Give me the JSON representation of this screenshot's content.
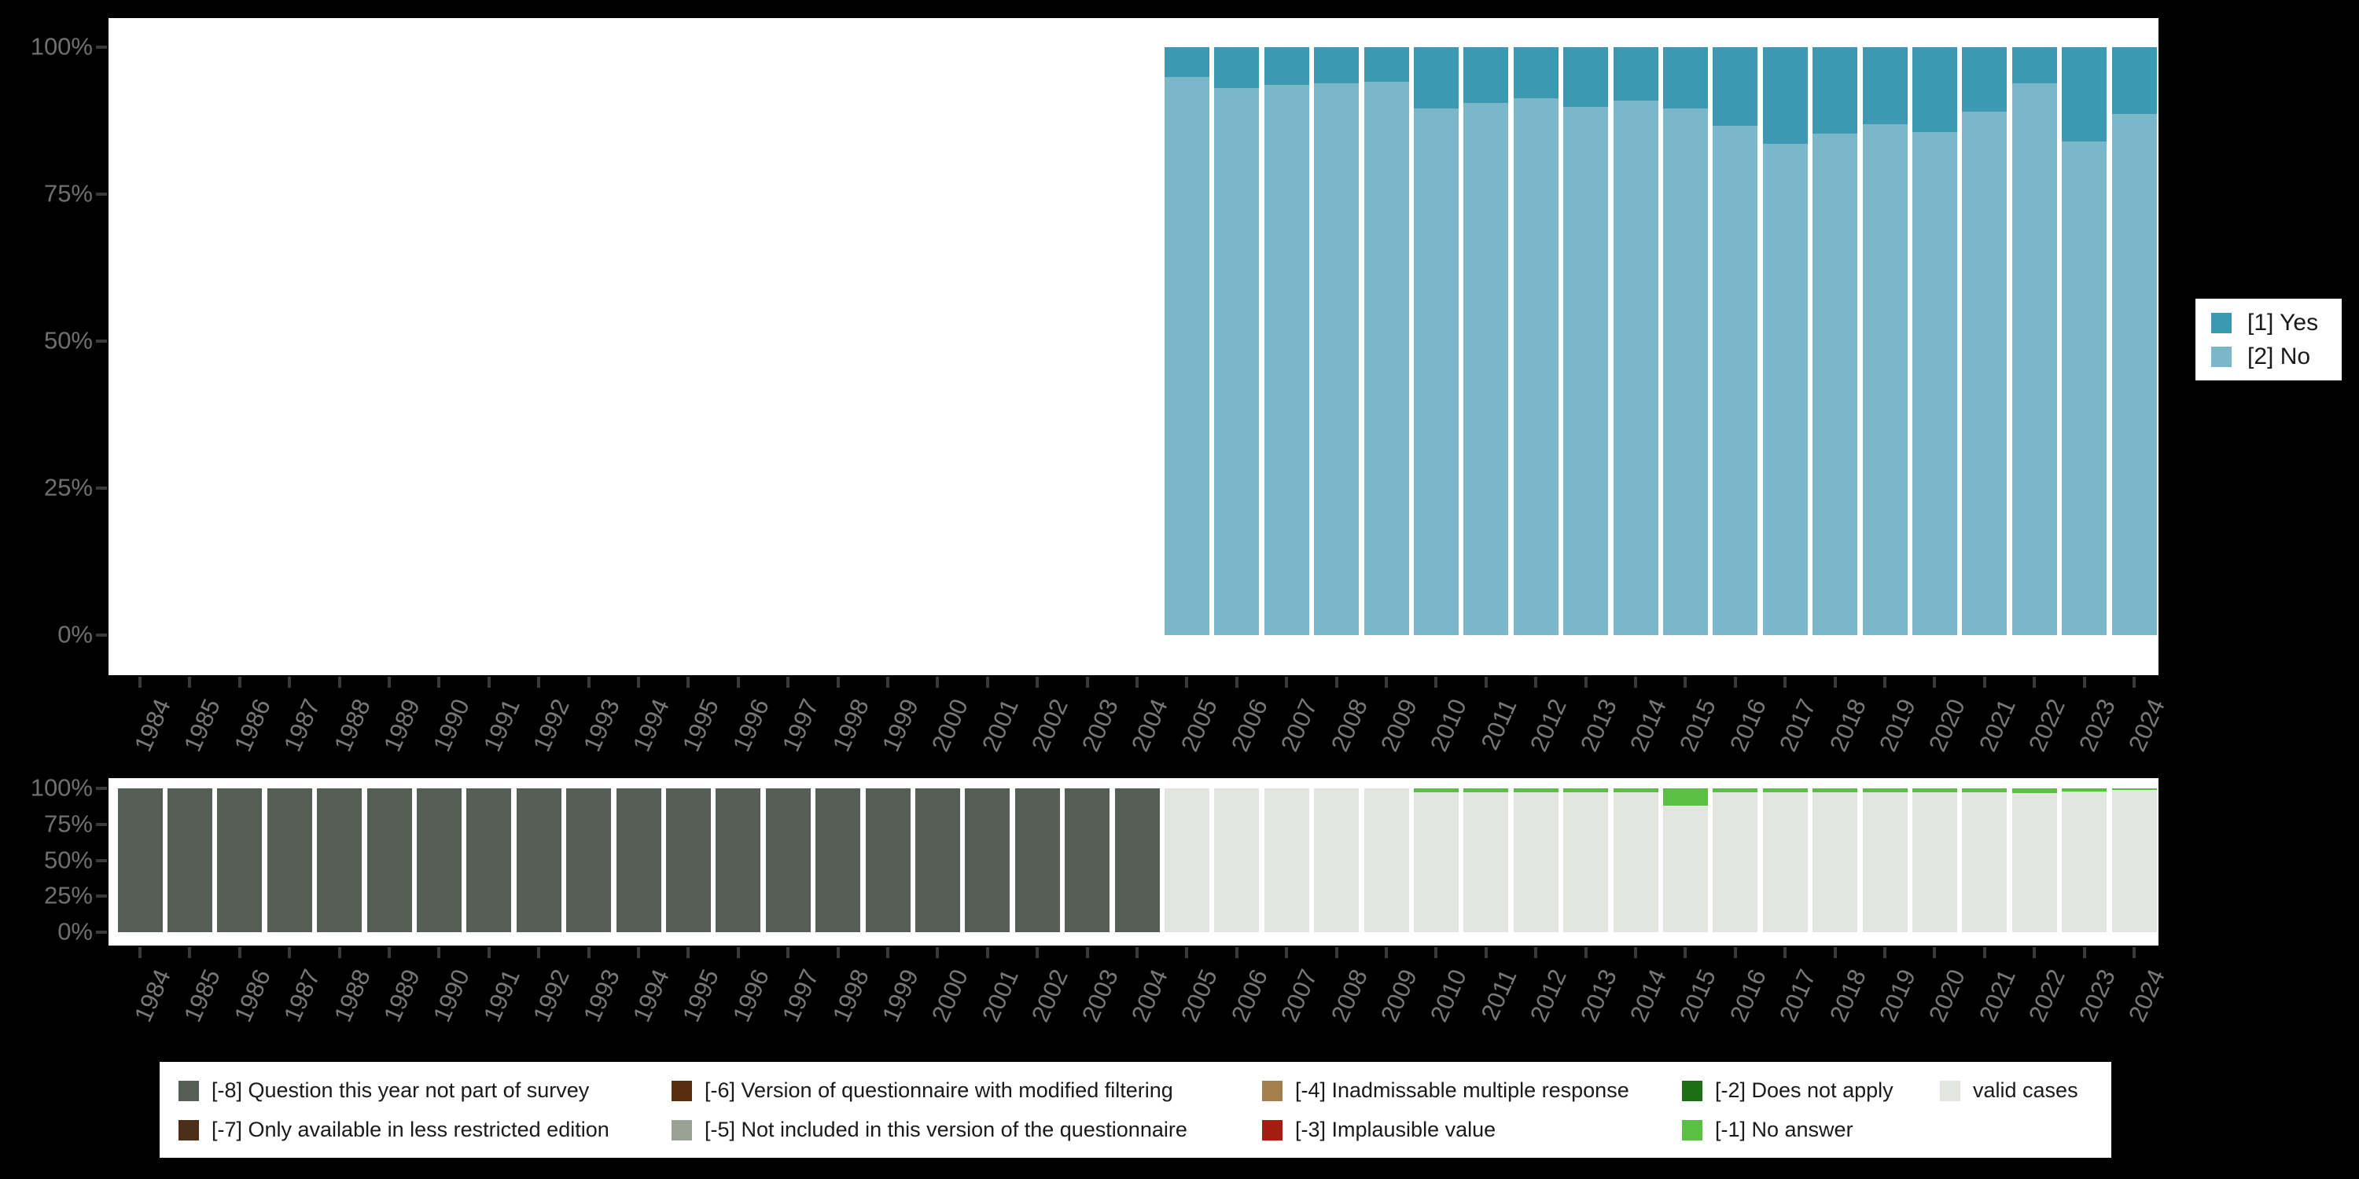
{
  "page": {
    "background": "#000000",
    "panel_background": "#ffffff"
  },
  "colors": {
    "yes": "#3d99b2",
    "no": "#79b7c9",
    "m8": "#555f55",
    "m7": "#4d2f19",
    "m6": "#582c0d",
    "m5": "#9aa296",
    "m4": "#a5804d",
    "m3": "#a51d10",
    "m2": "#1c6e14",
    "m1": "#5abf42",
    "valid": "#e2e5e0",
    "axis_text": "#787878",
    "tick_mark": "#3a3a3a"
  },
  "axes": {
    "y_tick_labels": [
      "100%",
      "75%",
      "50%",
      "25%",
      "0%"
    ],
    "y_tick_values": [
      100,
      75,
      50,
      25,
      0
    ]
  },
  "chart_data": [
    {
      "id": "answers-by-year",
      "type": "bar",
      "stacked": true,
      "title": "",
      "xlabel": "",
      "ylabel": "",
      "ylim": [
        0,
        100
      ],
      "y_ticks": [
        "0%",
        "25%",
        "50%",
        "75%",
        "100%"
      ],
      "grid": false,
      "legend_position": "right",
      "categories": [
        1984,
        1985,
        1986,
        1987,
        1988,
        1989,
        1990,
        1991,
        1992,
        1993,
        1994,
        1995,
        1996,
        1997,
        1998,
        1999,
        2000,
        2001,
        2002,
        2003,
        2004,
        2005,
        2006,
        2007,
        2008,
        2009,
        2010,
        2011,
        2012,
        2013,
        2014,
        2015,
        2016,
        2017,
        2018,
        2019,
        2020,
        2021,
        2022,
        2023,
        2024
      ],
      "series": [
        {
          "name": "[1] Yes",
          "color": "#3d99b2",
          "values": [
            null,
            null,
            null,
            null,
            null,
            null,
            null,
            null,
            null,
            null,
            null,
            null,
            null,
            null,
            null,
            null,
            null,
            null,
            null,
            null,
            null,
            5.1,
            6.9,
            6.4,
            6.1,
            5.9,
            10.4,
            9.5,
            8.7,
            10.1,
            9.1,
            10.4,
            13.4,
            16.5,
            14.7,
            13.1,
            14.5,
            10.9,
            6.2,
            16.0,
            11.4
          ]
        },
        {
          "name": "[2] No",
          "color": "#79b7c9",
          "values": [
            null,
            null,
            null,
            null,
            null,
            null,
            null,
            null,
            null,
            null,
            null,
            null,
            null,
            null,
            null,
            null,
            null,
            null,
            null,
            null,
            null,
            94.9,
            93.1,
            93.6,
            93.9,
            94.1,
            89.6,
            90.5,
            91.3,
            89.9,
            90.9,
            89.6,
            86.6,
            83.5,
            85.3,
            86.9,
            85.5,
            89.1,
            93.8,
            84.0,
            88.6
          ]
        }
      ]
    },
    {
      "id": "missing-values-by-year",
      "type": "bar",
      "stacked": true,
      "title": "",
      "xlabel": "",
      "ylabel": "",
      "ylim": [
        0,
        100
      ],
      "y_ticks": [
        "0%",
        "25%",
        "50%",
        "75%",
        "100%"
      ],
      "grid": false,
      "legend_position": "bottom",
      "categories": [
        1984,
        1985,
        1986,
        1987,
        1988,
        1989,
        1990,
        1991,
        1992,
        1993,
        1994,
        1995,
        1996,
        1997,
        1998,
        1999,
        2000,
        2001,
        2002,
        2003,
        2004,
        2005,
        2006,
        2007,
        2008,
        2009,
        2010,
        2011,
        2012,
        2013,
        2014,
        2015,
        2016,
        2017,
        2018,
        2019,
        2020,
        2021,
        2022,
        2023,
        2024
      ],
      "series": [
        {
          "name": "[-1] No answer",
          "color": "#5abf42",
          "values": [
            0,
            0,
            0,
            0,
            0,
            0,
            0,
            0,
            0,
            0,
            0,
            0,
            0,
            0,
            0,
            0,
            0,
            0,
            0,
            0,
            0,
            0,
            0,
            0,
            0,
            0,
            2.7,
            2.7,
            2.7,
            2.7,
            2.7,
            12.0,
            2.7,
            2.7,
            2.7,
            2.7,
            2.7,
            2.7,
            3.2,
            2.2,
            1.1
          ]
        },
        {
          "name": "valid cases",
          "color": "#e2e5e0",
          "values": [
            0,
            0,
            0,
            0,
            0,
            0,
            0,
            0,
            0,
            0,
            0,
            0,
            0,
            0,
            0,
            0,
            0,
            0,
            0,
            0,
            0,
            100,
            100,
            100,
            100,
            100,
            97.3,
            97.3,
            97.3,
            97.3,
            97.3,
            88.0,
            97.3,
            97.3,
            97.3,
            97.3,
            97.3,
            97.3,
            96.8,
            97.8,
            98.9
          ]
        },
        {
          "name": "[-8] Question this year not part of survey",
          "color": "#555f55",
          "values": [
            100,
            100,
            100,
            100,
            100,
            100,
            100,
            100,
            100,
            100,
            100,
            100,
            100,
            100,
            100,
            100,
            100,
            100,
            100,
            100,
            100,
            0,
            0,
            0,
            0,
            0,
            0,
            0,
            0,
            0,
            0,
            0,
            0,
            0,
            0,
            0,
            0,
            0,
            0,
            0,
            0
          ]
        }
      ]
    }
  ],
  "top_legend": {
    "entries": [
      {
        "label": "[1] Yes",
        "color": "#3d99b2"
      },
      {
        "label": "[2] No",
        "color": "#79b7c9"
      }
    ]
  },
  "missing_legend": {
    "columns": [
      [
        {
          "label": "[-8] Question this year not part of survey",
          "color": "#555f55"
        },
        {
          "label": "[-7] Only available in less restricted edition",
          "color": "#4d2f19"
        }
      ],
      [
        {
          "label": "[-6] Version of questionnaire with modified filtering",
          "color": "#582c0d"
        },
        {
          "label": "[-5] Not included in this version of the questionnaire",
          "color": "#9aa296"
        }
      ],
      [
        {
          "label": "[-4] Inadmissable multiple response",
          "color": "#a5804d"
        },
        {
          "label": "[-3] Implausible value",
          "color": "#a51d10"
        }
      ],
      [
        {
          "label": "[-2] Does not apply",
          "color": "#1c6e14"
        },
        {
          "label": "[-1] No answer",
          "color": "#5abf42"
        }
      ],
      [
        {
          "label": "valid cases",
          "color": "#e2e5e0"
        }
      ]
    ]
  }
}
